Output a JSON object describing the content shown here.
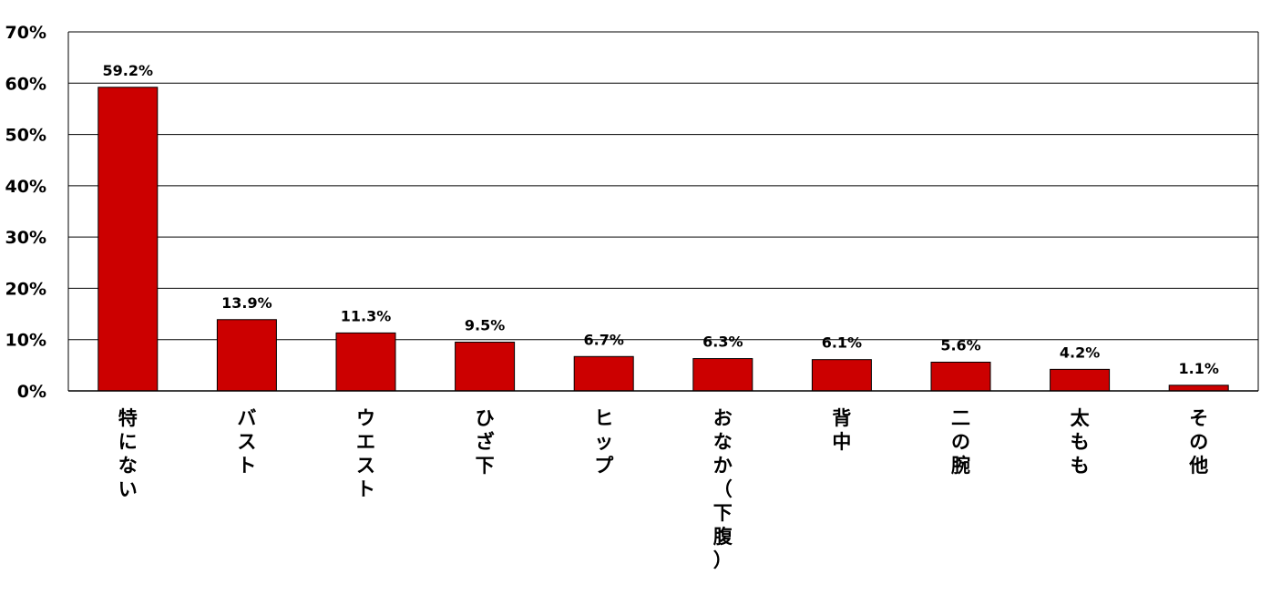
{
  "chart_data": {
    "type": "bar",
    "title": "",
    "xlabel": "",
    "ylabel": "",
    "categories": [
      "特にない",
      "バスト",
      "ウエスト",
      "ひざ下",
      "ヒップ",
      "おなか（下腹）",
      "背中",
      "二の腕",
      "太もも",
      "その他"
    ],
    "values": [
      59.2,
      13.9,
      11.3,
      9.5,
      6.7,
      6.3,
      6.1,
      5.6,
      4.2,
      1.1
    ],
    "data_labels": [
      "59.2%",
      "13.9%",
      "11.3%",
      "9.5%",
      "6.7%",
      "6.3%",
      "6.1%",
      "5.6%",
      "4.2%",
      "1.1%"
    ],
    "ylim": [
      0,
      70
    ],
    "yticks": [
      0,
      10,
      20,
      30,
      40,
      50,
      60,
      70
    ],
    "ytick_labels": [
      "0%",
      "10%",
      "20%",
      "30%",
      "40%",
      "50%",
      "60%",
      "70%"
    ],
    "grid": true,
    "legend": "none",
    "colors": {
      "bar_fill": "#cc0000",
      "bar_stroke": "#000000",
      "gridline": "#000000",
      "axis": "#000000"
    }
  }
}
